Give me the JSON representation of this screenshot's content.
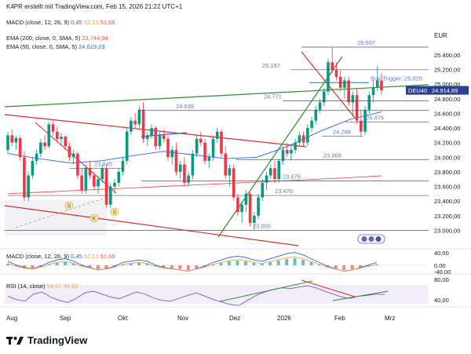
{
  "header": "K4PR erstellt mit TradingView.com, Feb 15, 2026 21:22 UTC+1",
  "currency": "EUR",
  "legend": {
    "macd_top": {
      "label": "MACD (close, 12, 26, 9)",
      "v1": "0,45",
      "v2": "52,13",
      "v3": "51,68"
    },
    "ema200": {
      "label": "EMA (200, close, 0, SMA, 5)",
      "value": "23.744,94"
    },
    "ema50": {
      "label": "EMA (50, close, 0, SMA, 5)",
      "value": "24.619,23"
    },
    "macd_pane": {
      "label": "MACD (close, 12, 26, 9)",
      "v1": "0,45",
      "v2": "52,13",
      "v3": "51,68"
    },
    "rsi_pane": {
      "label": "RSI (14, close)",
      "v1": "54,07",
      "v2": "49,63"
    }
  },
  "brand": "TradingView",
  "colors": {
    "up": "#089981",
    "down": "#f23645",
    "ema200": "#ef5350",
    "ema50": "#2962ff",
    "trend_green": "#2e8b2e",
    "trend_red": "#d32f2f",
    "level": "#131722",
    "label_blue": "#5b7bd5",
    "badge": "#2a3f8f"
  },
  "chart_data": {
    "type": "candlestick",
    "symbol": "DEU40",
    "last_price": "24.914,89",
    "y_range": [
      22800,
      25700
    ],
    "y_ticks": [
      "25.400,00",
      "25.200,00",
      "25.000,00",
      "24.800,00",
      "24.600,00",
      "24.400,00",
      "24.200,00",
      "24.000,00",
      "23.800,00",
      "23.600,00",
      "23.400,00",
      "23.200,00",
      "23.000,00"
    ],
    "y_tick_values": [
      25400,
      25200,
      25000,
      24800,
      24600,
      24400,
      24200,
      24000,
      23800,
      23600,
      23400,
      23200,
      23000
    ],
    "x_labels": [
      "Aug",
      "Sep",
      "Okt",
      "Nov",
      "Dez",
      "2026",
      "Feb",
      "Mrz"
    ],
    "levels": [
      {
        "value": 25507,
        "label": "25.507"
      },
      {
        "value": 25197,
        "label": "25.197"
      },
      {
        "value": 25020,
        "label": "Buy-Trigger: 25.020"
      },
      {
        "value": 24771,
        "label": "24.771"
      },
      {
        "value": 24639,
        "label": "24.639"
      },
      {
        "value": 24479,
        "label": "24.479"
      },
      {
        "value": 24288,
        "label": "24.288"
      },
      {
        "value": 23968,
        "label": "23.968"
      },
      {
        "value": 23845,
        "label": "23.845"
      },
      {
        "value": 23675,
        "label": "23.675"
      },
      {
        "value": 23476,
        "label": "23.476"
      },
      {
        "value": 23000,
        "label": "23.000"
      }
    ],
    "pattern_labels": [
      "S",
      "K",
      "S"
    ],
    "macd_axis": [
      "40,00",
      "0,00",
      "-40,00"
    ],
    "rsi_axis": [
      "80,00",
      "40,00"
    ],
    "candles_approx": [
      [
        24100,
        24350,
        24050,
        24300
      ],
      [
        24300,
        24380,
        24150,
        24200
      ],
      [
        24200,
        24290,
        24100,
        24260
      ],
      [
        24260,
        24300,
        23950,
        24000
      ],
      [
        24000,
        24080,
        23400,
        23450
      ],
      [
        23450,
        23800,
        23400,
        23750
      ],
      [
        23750,
        24000,
        23700,
        23950
      ],
      [
        23950,
        24100,
        23900,
        24050
      ],
      [
        24050,
        24250,
        24000,
        24200
      ],
      [
        24200,
        24300,
        24100,
        24150
      ],
      [
        24150,
        24480,
        24120,
        24450
      ],
      [
        24450,
        24500,
        24300,
        24350
      ],
      [
        24350,
        24420,
        24200,
        24250
      ],
      [
        24250,
        24330,
        24150,
        24280
      ],
      [
        24280,
        24300,
        24100,
        24150
      ],
      [
        24150,
        24200,
        23950,
        24000
      ],
      [
        24000,
        24100,
        23900,
        24050
      ],
      [
        24050,
        24080,
        23700,
        23750
      ],
      [
        23750,
        23850,
        23500,
        23550
      ],
      [
        23550,
        23900,
        23500,
        23850
      ],
      [
        23850,
        23950,
        23700,
        23750
      ],
      [
        23750,
        23800,
        23550,
        23600
      ],
      [
        23600,
        23750,
        23500,
        23700
      ],
      [
        23700,
        23900,
        23650,
        23850
      ],
      [
        23850,
        23900,
        23300,
        23350
      ],
      [
        23350,
        23650,
        23300,
        23600
      ],
      [
        23600,
        23700,
        23500,
        23650
      ],
      [
        23650,
        23850,
        23600,
        23800
      ],
      [
        23800,
        24000,
        23750,
        23950
      ],
      [
        23950,
        24400,
        23900,
        24350
      ],
      [
        24350,
        24550,
        24300,
        24500
      ],
      [
        24500,
        24600,
        24400,
        24450
      ],
      [
        24450,
        24700,
        24400,
        24650
      ],
      [
        24650,
        24750,
        24200,
        24250
      ],
      [
        24250,
        24350,
        24150,
        24300
      ],
      [
        24300,
        24450,
        24250,
        24400
      ],
      [
        24400,
        24420,
        24100,
        24150
      ],
      [
        24150,
        24350,
        24100,
        24300
      ],
      [
        24300,
        24380,
        24200,
        24250
      ],
      [
        24250,
        24300,
        23950,
        24000
      ],
      [
        24000,
        24150,
        23900,
        24100
      ],
      [
        24100,
        24200,
        23750,
        23800
      ],
      [
        23800,
        23950,
        23700,
        23900
      ],
      [
        23900,
        24000,
        23600,
        23650
      ],
      [
        23650,
        23800,
        23600,
        23750
      ],
      [
        23750,
        24100,
        23700,
        24050
      ],
      [
        24050,
        24300,
        24000,
        24250
      ],
      [
        24250,
        24350,
        24150,
        24200
      ],
      [
        24200,
        24250,
        23900,
        23950
      ],
      [
        23950,
        24050,
        23850,
        24000
      ],
      [
        24000,
        24300,
        23950,
        24250
      ],
      [
        24250,
        24400,
        24200,
        24350
      ],
      [
        24350,
        24380,
        24000,
        24050
      ],
      [
        24050,
        24150,
        23700,
        23750
      ],
      [
        23750,
        23900,
        23600,
        23850
      ],
      [
        23850,
        23900,
        23400,
        23450
      ],
      [
        23450,
        23500,
        23200,
        23250
      ],
      [
        23250,
        23400,
        23100,
        23350
      ],
      [
        23350,
        23550,
        23250,
        23500
      ],
      [
        23500,
        23520,
        23050,
        23100
      ],
      [
        23100,
        23250,
        23000,
        23200
      ],
      [
        23200,
        23500,
        23150,
        23450
      ],
      [
        23450,
        23700,
        23400,
        23650
      ],
      [
        23650,
        23800,
        23550,
        23750
      ],
      [
        23750,
        23900,
        23700,
        23850
      ],
      [
        23850,
        23950,
        23650,
        23700
      ],
      [
        23700,
        23980,
        23650,
        23950
      ],
      [
        23950,
        24150,
        23900,
        24100
      ],
      [
        24100,
        24200,
        24000,
        24050
      ],
      [
        24050,
        24150,
        23950,
        24100
      ],
      [
        24100,
        24250,
        24050,
        24200
      ],
      [
        24200,
        24350,
        24150,
        24300
      ],
      [
        24300,
        24350,
        24150,
        24200
      ],
      [
        24200,
        24450,
        24150,
        24400
      ],
      [
        24400,
        24550,
        24350,
        24500
      ],
      [
        24500,
        24700,
        24450,
        24650
      ],
      [
        24650,
        24800,
        24600,
        24750
      ],
      [
        24750,
        24950,
        24700,
        24900
      ],
      [
        24900,
        25350,
        24850,
        25300
      ],
      [
        25300,
        25500,
        25150,
        25200
      ],
      [
        25200,
        25300,
        25050,
        25100
      ],
      [
        25100,
        25200,
        24900,
        24950
      ],
      [
        24950,
        25100,
        24800,
        25050
      ],
      [
        25050,
        25100,
        24700,
        24750
      ],
      [
        24750,
        24900,
        24550,
        24850
      ],
      [
        24850,
        24950,
        24450,
        24500
      ],
      [
        24500,
        24650,
        24280,
        24350
      ],
      [
        24350,
        24700,
        24300,
        24650
      ],
      [
        24650,
        24900,
        24600,
        24850
      ],
      [
        24850,
        25050,
        24750,
        24950
      ],
      [
        24950,
        25250,
        24900,
        25050
      ],
      [
        25050,
        25150,
        24850,
        24915
      ]
    ],
    "ema200_approx": [
      23500,
      23520,
      23540,
      23560,
      23580,
      23600,
      23620,
      23640,
      23660,
      23680,
      23700,
      23720,
      23745
    ],
    "ema50_approx": [
      24050,
      23980,
      23920,
      23950,
      24020,
      24080,
      24030,
      23980,
      24000,
      24150,
      24350,
      24520,
      24620
    ]
  }
}
